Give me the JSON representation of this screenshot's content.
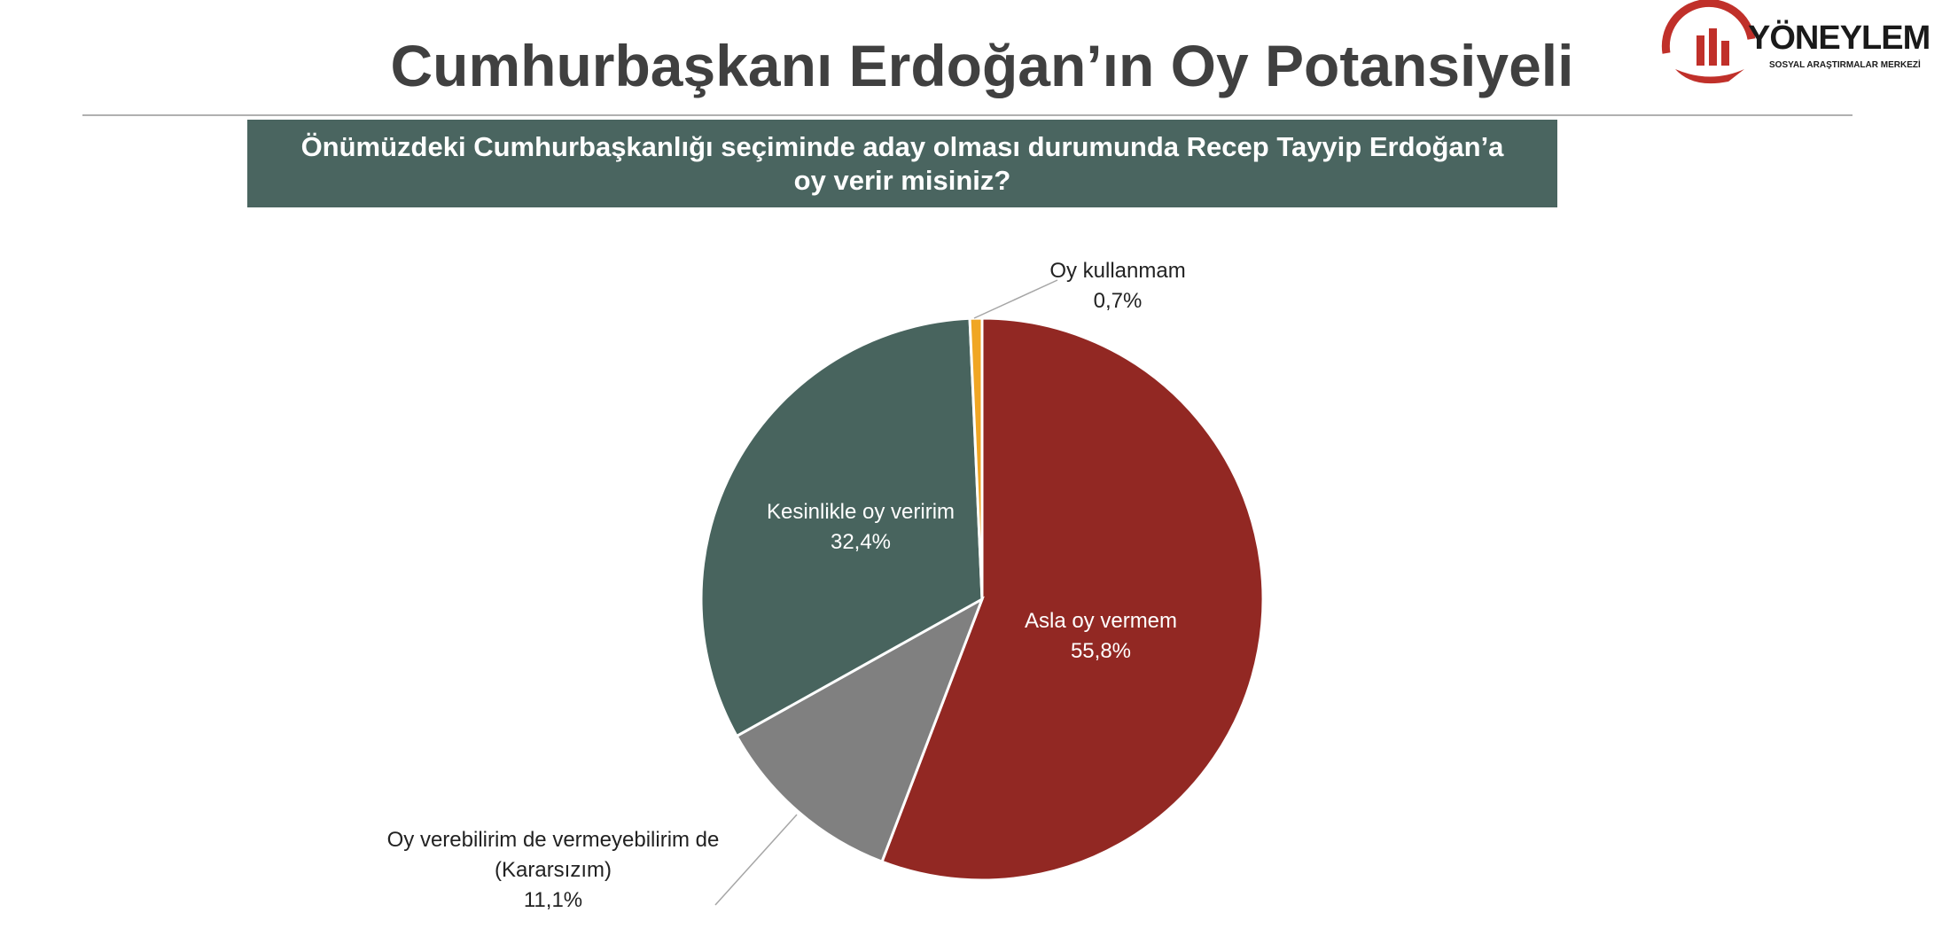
{
  "logo": {
    "name": "YÖNEYLEM",
    "tagline": "SOSYAL ARAŞTIRMALAR MERKEZİ"
  },
  "chart_data": {
    "type": "pie",
    "title": "Cumhurbaşkanı Erdoğan’ın Oy Potansiyeli",
    "subtitle": "Önümüzdeki Cumhurbaşkanlığı seçiminde aday olması durumunda Recep Tayyip Erdoğan’a oy verir misiniz?",
    "categories": [
      "Asla oy vermem",
      "Oy verebilirim de vermeyebilirim de (Kararsızım)",
      "Kesinlikle oy veririm",
      "Oy kullanmam"
    ],
    "values": [
      55.8,
      11.1,
      32.4,
      0.7
    ],
    "value_labels": [
      "55,8%",
      "11,1%",
      "32,4%",
      "0,7%"
    ],
    "colors": [
      "#922823",
      "#808080",
      "#48645e",
      "#f0a623"
    ]
  }
}
